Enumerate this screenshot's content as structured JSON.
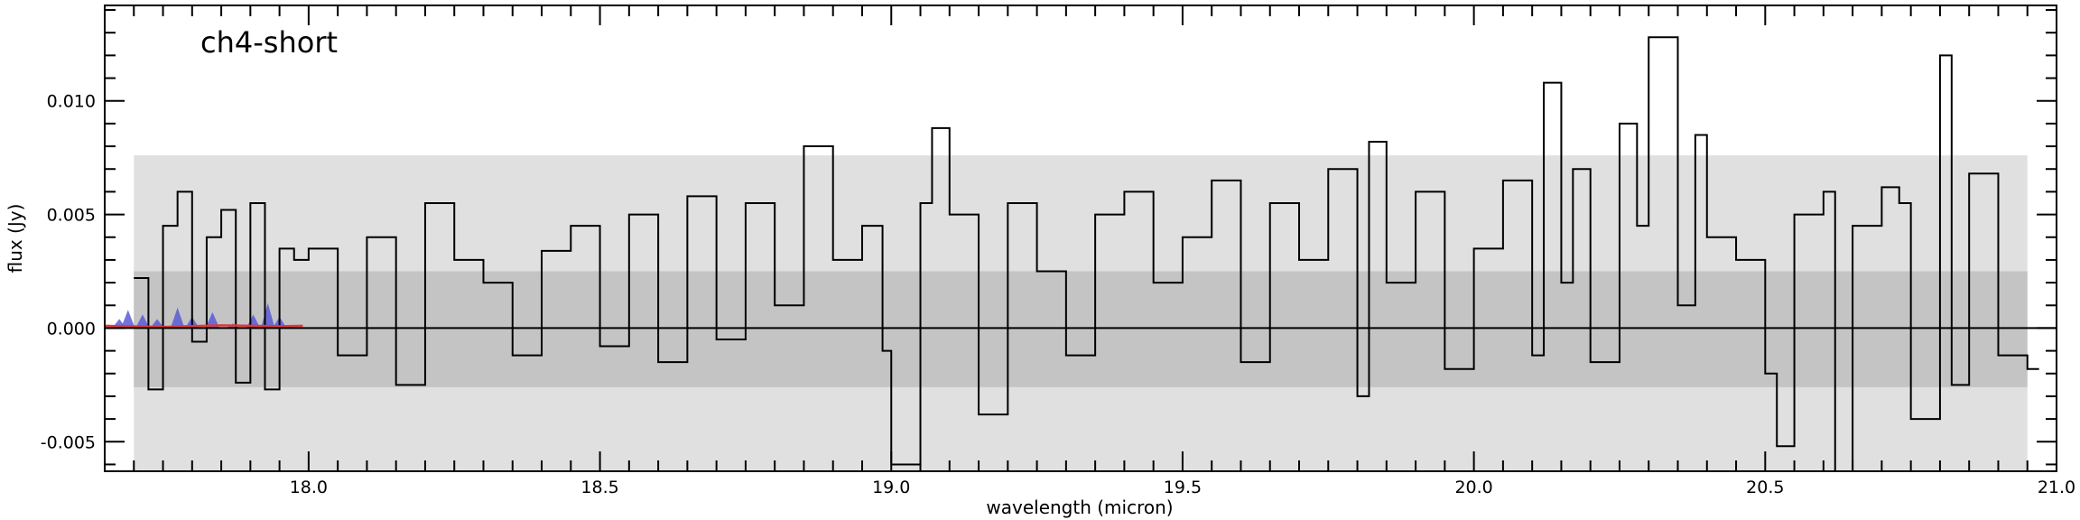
{
  "chart_data": {
    "type": "line",
    "title": "ch4-short",
    "xlabel": "wavelength (micron)",
    "ylabel": "flux (Jy)",
    "xlim": [
      17.65,
      21.0
    ],
    "ylim": [
      -0.0063,
      0.0142
    ],
    "x_ticks": [
      18.0,
      18.5,
      19.0,
      19.5,
      20.0,
      20.5,
      21.0
    ],
    "x_tick_labels": [
      "18.0",
      "18.5",
      "19.0",
      "19.5",
      "20.0",
      "20.5",
      "21.0"
    ],
    "y_ticks": [
      -0.005,
      0.0,
      0.005,
      0.01
    ],
    "y_tick_labels": [
      "-0.005",
      "0.000",
      "0.005",
      "0.010"
    ],
    "grid": false,
    "bands": [
      {
        "name": "outer",
        "x": [
          17.7,
          20.95
        ],
        "y": [
          -0.0063,
          0.0076
        ],
        "color": "#e0e0e0"
      },
      {
        "name": "inner",
        "x": [
          17.7,
          20.95
        ],
        "y": [
          -0.0026,
          0.0025
        ],
        "color": "#c4c4c4"
      }
    ],
    "zero_line": 0.0,
    "series": [
      {
        "style": "steps",
        "color": "#000000",
        "x": [
          17.7,
          17.725,
          17.75,
          17.775,
          17.8,
          17.825,
          17.85,
          17.875,
          17.9,
          17.925,
          17.95,
          17.975,
          18.0,
          18.05,
          18.1,
          18.15,
          18.2,
          18.25,
          18.3,
          18.35,
          18.4,
          18.45,
          18.5,
          18.55,
          18.6,
          18.65,
          18.7,
          18.75,
          18.8,
          18.85,
          18.9,
          18.95,
          18.985,
          19.0,
          19.05,
          19.07,
          19.1,
          19.15,
          19.2,
          19.25,
          19.3,
          19.35,
          19.4,
          19.45,
          19.5,
          19.55,
          19.6,
          19.65,
          19.7,
          19.75,
          19.8,
          19.82,
          19.85,
          19.9,
          19.95,
          20.0,
          20.05,
          20.1,
          20.12,
          20.15,
          20.17,
          20.2,
          20.25,
          20.28,
          20.3,
          20.35,
          20.38,
          20.4,
          20.45,
          20.5,
          20.52,
          20.55,
          20.6,
          20.62,
          20.65,
          20.7,
          20.73,
          20.75,
          20.8,
          20.82,
          20.85,
          20.9,
          20.95
        ],
        "y": [
          0.0022,
          -0.0027,
          0.0045,
          0.006,
          -0.0006,
          0.004,
          0.0052,
          -0.0024,
          0.0055,
          -0.0027,
          0.0035,
          0.003,
          0.0035,
          -0.0012,
          0.004,
          -0.0025,
          0.0055,
          0.003,
          0.002,
          -0.0012,
          0.0034,
          0.0045,
          -0.0008,
          0.005,
          -0.0015,
          0.0058,
          -0.0005,
          0.0055,
          0.001,
          0.008,
          0.003,
          0.0045,
          -0.001,
          -0.006,
          0.0055,
          0.0088,
          0.005,
          -0.0038,
          0.0055,
          0.0025,
          -0.0012,
          0.005,
          0.006,
          0.002,
          0.004,
          0.0065,
          -0.0015,
          0.0055,
          0.003,
          0.007,
          -0.003,
          0.0082,
          0.002,
          0.006,
          -0.0018,
          0.0035,
          0.0065,
          -0.0012,
          0.0108,
          0.002,
          0.007,
          -0.0015,
          0.009,
          0.0045,
          0.0128,
          0.001,
          0.0085,
          0.004,
          0.003,
          -0.002,
          -0.0052,
          0.005,
          0.006,
          -0.0063,
          0.0045,
          0.0062,
          0.0055,
          -0.004,
          0.012,
          -0.0025,
          0.0068,
          -0.0012,
          -0.0018
        ]
      },
      {
        "style": "line",
        "color": "#dd3b3b",
        "x": [
          17.65,
          17.75,
          17.85,
          17.95,
          17.99
        ],
        "y": [
          0.0001,
          5e-05,
          0.00012,
          8e-05,
          0.0001
        ]
      }
    ],
    "fills": [
      {
        "color": "#5b5bd6",
        "peaks": [
          {
            "x": 17.675,
            "h": 0.0004
          },
          {
            "x": 17.69,
            "h": 0.0008
          },
          {
            "x": 17.715,
            "h": 0.0006
          },
          {
            "x": 17.74,
            "h": 0.0004
          },
          {
            "x": 17.775,
            "h": 0.0009
          },
          {
            "x": 17.8,
            "h": 0.0005
          },
          {
            "x": 17.835,
            "h": 0.0007
          },
          {
            "x": 17.87,
            "h": 0.0002
          },
          {
            "x": 17.905,
            "h": 0.0006
          },
          {
            "x": 17.93,
            "h": 0.0011
          },
          {
            "x": 17.95,
            "h": 0.0005
          }
        ]
      }
    ]
  }
}
